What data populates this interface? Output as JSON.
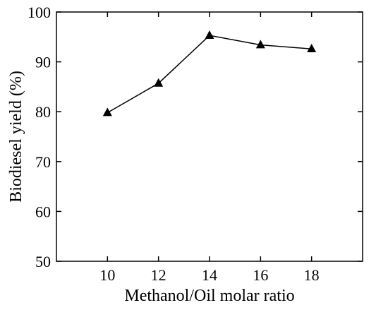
{
  "chart_data": {
    "type": "line",
    "title": "",
    "xlabel": "Methanol/Oil molar ratio",
    "ylabel": "Biodiesel yield (%)",
    "xlim": [
      8,
      20
    ],
    "ylim": [
      50,
      100
    ],
    "x_ticks": [
      10,
      12,
      14,
      16,
      18
    ],
    "y_ticks": [
      50,
      60,
      70,
      80,
      90,
      100
    ],
    "grid": false,
    "marker": "filled-triangle",
    "series": [
      {
        "x": [
          10,
          12,
          14,
          16,
          18
        ],
        "values": [
          79.8,
          85.7,
          95.3,
          93.4,
          92.6
        ]
      }
    ],
    "colors": {
      "line": "#000000",
      "marker": "#000000",
      "axes": "#000000"
    }
  }
}
